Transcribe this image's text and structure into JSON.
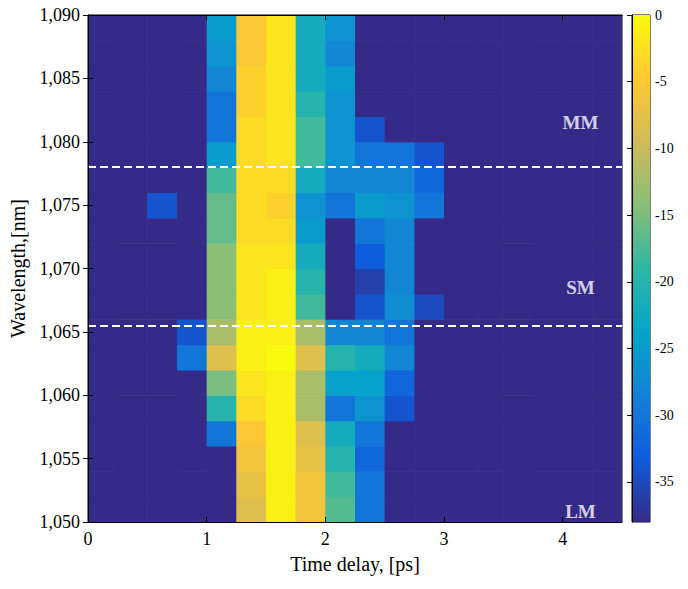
{
  "chart_data": {
    "type": "heatmap",
    "x_label": "Time delay, [ps]",
    "y_label": "Wavelength,[nm]",
    "xlim": [
      0,
      4.5
    ],
    "xticks": [
      0,
      1,
      2,
      3,
      4
    ],
    "ylim": [
      1050,
      1090
    ],
    "yticks": [
      1050,
      1055,
      1060,
      1065,
      1070,
      1075,
      1080,
      1085,
      1090
    ],
    "x": [
      0.125,
      0.375,
      0.625,
      0.875,
      1.125,
      1.375,
      1.625,
      1.875,
      2.125,
      2.375,
      2.625,
      2.875,
      3.125,
      3.375,
      3.625,
      3.875,
      4.125,
      4.375
    ],
    "y": [
      1051,
      1053,
      1055,
      1057,
      1059,
      1061,
      1063,
      1065,
      1067,
      1069,
      1071,
      1073,
      1075,
      1077,
      1079,
      1081,
      1083,
      1085,
      1087,
      1089
    ],
    "z": [
      [
        -38,
        -38,
        -38,
        -38,
        -38,
        -8,
        -1,
        -6,
        -17,
        -30,
        -38,
        -38,
        -38,
        -38,
        -38,
        -38,
        -38,
        -38
      ],
      [
        -38,
        -38,
        -38,
        -38,
        -38,
        -7,
        -1,
        -6,
        -18,
        -30,
        -38,
        -38,
        -38,
        -38,
        -38,
        -38,
        -38,
        -38
      ],
      [
        -38,
        -38,
        -38,
        -38,
        -38,
        -6,
        -1,
        -7,
        -20,
        -32,
        -38,
        -38,
        -38,
        -38,
        -38,
        -38,
        -38,
        -38
      ],
      [
        -38,
        -38,
        -38,
        -38,
        -30,
        -5,
        -1,
        -8,
        -22,
        -30,
        -38,
        -38,
        -38,
        -38,
        -38,
        -38,
        -38,
        -38
      ],
      [
        -38,
        -38,
        -38,
        -38,
        -20,
        -3,
        -1,
        -12,
        -30,
        -26,
        -34,
        -38,
        -38,
        -38,
        -38,
        -38,
        -38,
        -38
      ],
      [
        -38,
        -38,
        -38,
        -38,
        -15,
        -2,
        -1,
        -12,
        -24,
        -24,
        -32,
        -38,
        -38,
        -38,
        -38,
        -38,
        -38,
        -38
      ],
      [
        -38,
        -38,
        -38,
        -30,
        -8,
        -1,
        0,
        -8,
        -20,
        -22,
        -28,
        -38,
        -38,
        -38,
        -38,
        -38,
        -38,
        -38
      ],
      [
        -38,
        -38,
        -38,
        -34,
        -12,
        -1,
        -1,
        -12,
        -28,
        -28,
        -30,
        -38,
        -38,
        -38,
        -38,
        -38,
        -38,
        -38
      ],
      [
        -38,
        -38,
        -38,
        -38,
        -14,
        -2,
        -1,
        -18,
        -38,
        -34,
        -27,
        -35,
        -38,
        -38,
        -38,
        -38,
        -38,
        -38
      ],
      [
        -38,
        -38,
        -38,
        -38,
        -14,
        -2,
        -1,
        -20,
        -38,
        -36,
        -28,
        -38,
        -38,
        -38,
        -38,
        -38,
        -38,
        -38
      ],
      [
        -38,
        -38,
        -38,
        -38,
        -14,
        -2,
        -2,
        -22,
        -38,
        -33,
        -28,
        -38,
        -38,
        -38,
        -38,
        -38,
        -38,
        -38
      ],
      [
        -38,
        -38,
        -38,
        -38,
        -16,
        -3,
        -3,
        -25,
        -38,
        -30,
        -28,
        -38,
        -38,
        -38,
        -38,
        -38,
        -38,
        -38
      ],
      [
        -38,
        -38,
        -34,
        -38,
        -16,
        -3,
        -4,
        -26,
        -30,
        -25,
        -26,
        -30,
        -38,
        -38,
        -38,
        -38,
        -38,
        -38
      ],
      [
        -38,
        -38,
        -38,
        -38,
        -18,
        -3,
        -3,
        -22,
        -28,
        -28,
        -28,
        -32,
        -38,
        -38,
        -38,
        -38,
        -38,
        -38
      ],
      [
        -38,
        -38,
        -38,
        -38,
        -25,
        -3,
        -2,
        -18,
        -26,
        -30,
        -30,
        -34,
        -38,
        -38,
        -38,
        -38,
        -38,
        -38
      ],
      [
        -38,
        -38,
        -38,
        -38,
        -30,
        -3,
        -2,
        -18,
        -26,
        -34,
        -38,
        -38,
        -38,
        -38,
        -38,
        -38,
        -38,
        -38
      ],
      [
        -38,
        -38,
        -38,
        -38,
        -30,
        -4,
        -2,
        -20,
        -26,
        -38,
        -38,
        -38,
        -38,
        -38,
        -38,
        -38,
        -38,
        -38
      ],
      [
        -38,
        -38,
        -38,
        -38,
        -28,
        -4,
        -2,
        -22,
        -25,
        -38,
        -38,
        -38,
        -38,
        -38,
        -38,
        -38,
        -38,
        -38
      ],
      [
        -38,
        -38,
        -38,
        -38,
        -26,
        -5,
        -2,
        -22,
        -28,
        -38,
        -38,
        -38,
        -38,
        -38,
        -38,
        -38,
        -38,
        -38
      ],
      [
        -38,
        -38,
        -38,
        -38,
        -25,
        -5,
        -2,
        -22,
        -26,
        -38,
        -38,
        -38,
        -38,
        -38,
        -38,
        -38,
        -38,
        -38
      ]
    ],
    "clim": [
      -38,
      0
    ],
    "cticks": [
      0,
      -5,
      -10,
      -15,
      -20,
      -25,
      -30,
      -35
    ],
    "hlines": [
      1078,
      1065.5
    ],
    "annotations": [
      {
        "text": "MM",
        "x": 4.15,
        "y": 1081.5
      },
      {
        "text": "SM",
        "x": 4.15,
        "y": 1068.5
      },
      {
        "text": "LM",
        "x": 4.15,
        "y": 1050.8
      }
    ]
  }
}
